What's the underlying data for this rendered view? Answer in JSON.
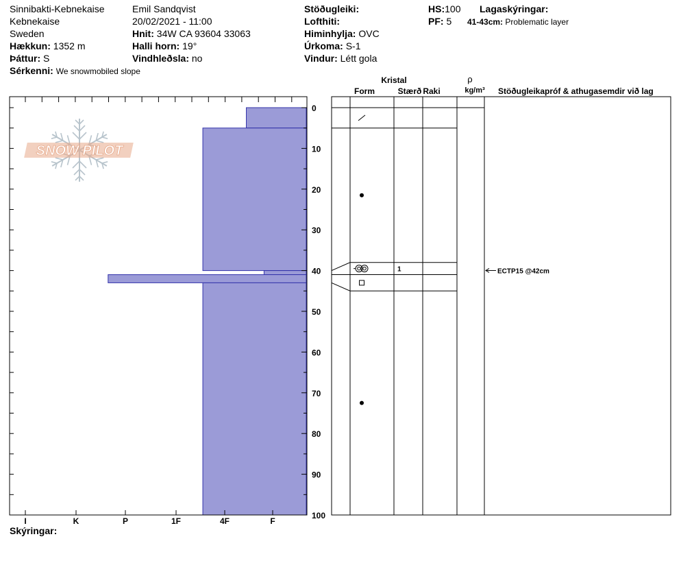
{
  "header": {
    "col1": {
      "location": "Sinnibakti-Kebnekaise",
      "area": "Kebnekaise",
      "country": "Sweden",
      "elevation_label": "Hækkun:",
      "elevation_value": "1352 m",
      "aspect_label": "Þáttur:",
      "aspect_value": "S",
      "features_label": "Sérkenni:",
      "features_value": "We snowmobiled slope"
    },
    "col2": {
      "observer": "Emil Sandqvist",
      "datetime": "20/02/2021 - 11:00",
      "coords_label": "Hnit:",
      "coords_value": "34W CA 93604 33063",
      "slope_label": "Halli horn:",
      "slope_value": "19°",
      "wind_loading_label": "Vindhleðsla:",
      "wind_loading_value": "no"
    },
    "col3": {
      "stability_label": "Stöðugleiki:",
      "air_temp_label": "Lofthiti:",
      "sky_label": "Himinhylja:",
      "sky_value": "OVC",
      "precip_label": "Úrkoma:",
      "precip_value": "S-1",
      "wind_label": "Vindur:",
      "wind_value": "Létt gola"
    },
    "col4": {
      "hs_label": "HS:",
      "hs_value": "100",
      "pf_label": "PF:",
      "pf_value": "5",
      "layer_notes_label": "Lagaskýringar:",
      "layer_note_range": "41-43cm:",
      "layer_note_text": "Problematic layer"
    }
  },
  "logo_text": "SNOW PILOT",
  "table_headers": {
    "crystal": "Kristal",
    "form": "Form",
    "size": "Stærð",
    "moisture": "Raki",
    "density_symbol": "ρ",
    "density_unit": "kg/m³",
    "comments": "Stöðugleikapróf & athugasemdir við lag"
  },
  "footer": {
    "notes_label": "Skýringar:"
  },
  "colors": {
    "fill": "#9b9bd7",
    "stroke": "#3333aa",
    "logo": "#e8a98a",
    "flake": "#b8c4cc"
  },
  "chart_data": {
    "type": "snow-profile",
    "hardness_scale": [
      "I",
      "K",
      "P",
      "1F",
      "4F",
      "F"
    ],
    "depth_ticks": [
      0,
      10,
      20,
      30,
      40,
      50,
      60,
      70,
      80,
      90,
      100
    ],
    "depth_range": [
      0,
      100
    ],
    "hardness_layers": [
      {
        "top": 0,
        "bottom": 5,
        "hardness": 4.45
      },
      {
        "top": 5,
        "bottom": 40,
        "hardness": 3.55
      },
      {
        "top": 40,
        "bottom": 41,
        "hardness": 4.82
      },
      {
        "top": 41,
        "bottom": 43,
        "hardness": 1.65
      },
      {
        "top": 43,
        "bottom": 100,
        "hardness": 3.55
      }
    ],
    "layer_rows": [
      {
        "top": 0,
        "bottom": 5,
        "grain": "decomposing",
        "size": ""
      },
      {
        "top": 5,
        "bottom": 38,
        "grain": "rounded",
        "size": ""
      },
      {
        "top": 38,
        "bottom": 41,
        "grain": "surface-hoar",
        "size": "1"
      },
      {
        "top": 41,
        "bottom": 45,
        "grain": "faceted",
        "size": ""
      },
      {
        "top": 45,
        "bottom": 100,
        "grain": "rounded",
        "size": ""
      }
    ],
    "tests": [
      {
        "depth": 42,
        "label": "ECTP15 @42cm"
      }
    ]
  }
}
